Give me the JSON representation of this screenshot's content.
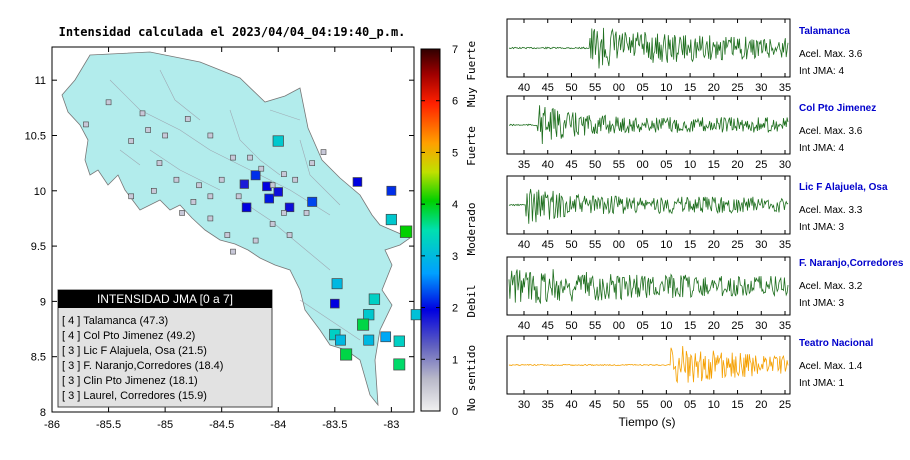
{
  "map": {
    "title": "Intensidad calculada el 2023/04/04_04:19:40_p.m.",
    "xticks": [
      "-86",
      "-85.5",
      "-85",
      "-84.5",
      "-84",
      "-83.5",
      "-83"
    ],
    "yticks": [
      "11",
      "10.5",
      "10",
      "9.5",
      "9",
      "8.5",
      "8"
    ],
    "xlim": [
      -86,
      -82.8
    ],
    "ylim": [
      8,
      11.3
    ],
    "legend_title": "INTENSIDAD JMA [0 a 7]",
    "legend_items": [
      "[ 4 ]  Talamanca (47.3)",
      "[ 4 ]  Col Pto Jimenez (49.2)",
      "[ 3 ]  Lic F Alajuela, Osa (21.5)",
      "[ 3 ]  F. Naranjo,Corredores (18.4)",
      "[ 3 ]  Clin Pto Jimenez (18.1)",
      "[ 3 ]  Laurel, Corredores (15.9)"
    ]
  },
  "colorbar": {
    "ticks": [
      "0",
      "1",
      "2",
      "3",
      "4",
      "5",
      "6",
      "7"
    ],
    "labels": [
      "No sentido",
      "Debil",
      "Moderado",
      "Fuerte",
      "Muy Fuerte"
    ]
  },
  "colors": {
    "land": "#b2ecec",
    "waveform_green": "#1f6f1f",
    "waveform_orange": "#f5a000",
    "station_title": "#0000cc"
  },
  "waveforms": {
    "xlabel": "Tiempo (s)",
    "panels": [
      {
        "station": "Talamanca",
        "accel": "Acel. Max. 3.6",
        "intensity": "Int JMA: 4",
        "ticks": [
          "40",
          "45",
          "50",
          "55",
          "00",
          "05",
          "10",
          "15",
          "20",
          "25",
          "30",
          "35"
        ],
        "onset_frac": 0.29,
        "amp_pre": 0.03,
        "amp_post": 0.85,
        "decay": 0.6
      },
      {
        "station": "Col Pto Jimenez",
        "accel": "Acel. Max. 3.6",
        "intensity": "Int JMA: 4",
        "ticks": [
          "35",
          "40",
          "45",
          "50",
          "55",
          "00",
          "05",
          "10",
          "15",
          "20",
          "25",
          "30"
        ],
        "onset_frac": 0.1,
        "amp_pre": 0.03,
        "amp_post": 0.85,
        "decay": 2.5
      },
      {
        "station": "Lic F Alajuela, Osa",
        "accel": "Acel. Max. 3.3",
        "intensity": "Int JMA: 3",
        "ticks": [
          "40",
          "45",
          "50",
          "55",
          "00",
          "05",
          "10",
          "15",
          "20",
          "25",
          "30",
          "35"
        ],
        "onset_frac": 0.06,
        "amp_pre": 0.03,
        "amp_post": 0.9,
        "decay": 3.0
      },
      {
        "station": "F. Naranjo,Corredores",
        "accel": "Acel. Max. 3.2",
        "intensity": "Int JMA: 3",
        "ticks": [
          "40",
          "45",
          "50",
          "55",
          "00",
          "05",
          "10",
          "15",
          "20",
          "25",
          "30",
          "35"
        ],
        "onset_frac": 0.0,
        "amp_pre": 0.8,
        "amp_post": 0.75,
        "decay": 0.5
      },
      {
        "station": "Teatro Nacional",
        "accel": "Acel. Max. 1.4",
        "intensity": "Int JMA: 1",
        "ticks": [
          "30",
          "35",
          "40",
          "45",
          "50",
          "55",
          "00",
          "05",
          "10",
          "15",
          "20",
          "25"
        ],
        "onset_frac": 0.58,
        "amp_pre": 0.02,
        "amp_post": 0.9,
        "decay": 0.7
      }
    ]
  },
  "chart_data": {
    "type": "scatter",
    "title": "Intensidad calculada el 2023/04/04_04:19:40_p.m.",
    "xlim": [
      -86,
      -82.8
    ],
    "ylim": [
      8,
      11.3
    ],
    "stations": [
      {
        "lon": -83.0,
        "lat": 10.0,
        "intensity": 2.2
      },
      {
        "lon": -83.3,
        "lat": 10.08,
        "intensity": 2.0
      },
      {
        "lon": -83.0,
        "lat": 9.74,
        "intensity": 3.2
      },
      {
        "lon": -82.87,
        "lat": 9.63,
        "intensity": 4.0
      },
      {
        "lon": -84.0,
        "lat": 10.45,
        "intensity": 3.2
      },
      {
        "lon": -84.2,
        "lat": 10.14,
        "intensity": 2.2
      },
      {
        "lon": -84.1,
        "lat": 10.04,
        "intensity": 2.0
      },
      {
        "lon": -84.3,
        "lat": 10.06,
        "intensity": 1.8
      },
      {
        "lon": -84.0,
        "lat": 9.99,
        "intensity": 1.9
      },
      {
        "lon": -83.9,
        "lat": 9.85,
        "intensity": 1.9
      },
      {
        "lon": -84.08,
        "lat": 9.93,
        "intensity": 2.1
      },
      {
        "lon": -83.7,
        "lat": 9.9,
        "intensity": 2.3
      },
      {
        "lon": -84.28,
        "lat": 9.85,
        "intensity": 2.0
      },
      {
        "lon": -83.48,
        "lat": 9.16,
        "intensity": 3.0
      },
      {
        "lon": -83.5,
        "lat": 8.98,
        "intensity": 2.0
      },
      {
        "lon": -83.15,
        "lat": 9.02,
        "intensity": 3.3
      },
      {
        "lon": -83.2,
        "lat": 8.88,
        "intensity": 3.2
      },
      {
        "lon": -83.25,
        "lat": 8.79,
        "intensity": 3.8
      },
      {
        "lon": -83.5,
        "lat": 8.7,
        "intensity": 3.3
      },
      {
        "lon": -83.45,
        "lat": 8.65,
        "intensity": 3.0
      },
      {
        "lon": -83.2,
        "lat": 8.65,
        "intensity": 3.0
      },
      {
        "lon": -83.05,
        "lat": 8.68,
        "intensity": 2.8
      },
      {
        "lon": -82.93,
        "lat": 8.64,
        "intensity": 3.3
      },
      {
        "lon": -83.4,
        "lat": 8.52,
        "intensity": 3.8
      },
      {
        "lon": -82.93,
        "lat": 8.43,
        "intensity": 3.7
      },
      {
        "lon": -82.78,
        "lat": 8.88,
        "intensity": 3.1
      }
    ]
  }
}
